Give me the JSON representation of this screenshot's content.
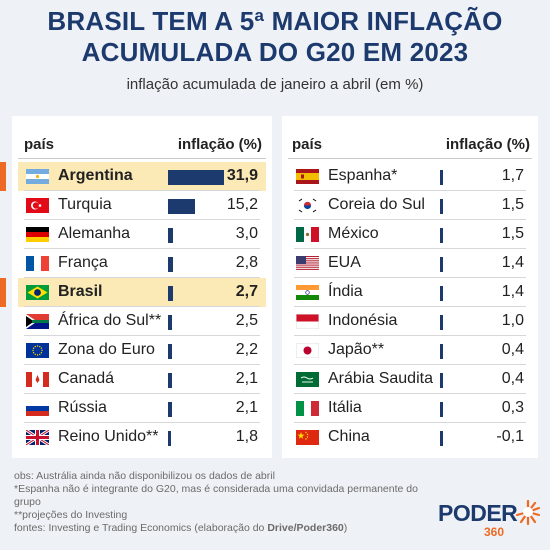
{
  "title_line1": "BRASIL TEM A 5ª MAIOR INFLAÇÃO",
  "title_line2": "ACUMULADA DO G20 EM 2023",
  "subtitle": "inflação acumulada de janeiro a abril (em %)",
  "table_left": {
    "col_country": "país",
    "col_value": "inflação (%)"
  },
  "table_right": {
    "col_country": "país",
    "col_value": "inflação (%)"
  },
  "colors": {
    "bar": "#1d3a6e",
    "highlight": "#fbe9b6",
    "accent": "#ee6a24"
  },
  "chart_data": {
    "type": "bar",
    "orientation": "horizontal",
    "title": "BRASIL TEM A 5ª MAIOR INFLAÇÃO ACUMULADA DO G20 EM 2023",
    "subtitle": "inflação acumulada de janeiro a abril (em %)",
    "rows": [
      {
        "country": "Argentina",
        "value": 31.9,
        "label": "31,9",
        "highlight": true,
        "flag": "argentina-flag-icon"
      },
      {
        "country": "Turquia",
        "value": 15.2,
        "label": "15,2",
        "highlight": false,
        "flag": "turkey-flag-icon"
      },
      {
        "country": "Alemanha",
        "value": 3.0,
        "label": "3,0",
        "highlight": false,
        "flag": "germany-flag-icon"
      },
      {
        "country": "França",
        "value": 2.8,
        "label": "2,8",
        "highlight": false,
        "flag": "france-flag-icon"
      },
      {
        "country": "Brasil",
        "value": 2.7,
        "label": "2,7",
        "highlight": true,
        "flag": "brazil-flag-icon"
      },
      {
        "country": "África do Sul**",
        "value": 2.5,
        "label": "2,5",
        "highlight": false,
        "flag": "south-africa-flag-icon"
      },
      {
        "country": "Zona do Euro",
        "value": 2.2,
        "label": "2,2",
        "highlight": false,
        "flag": "eu-flag-icon"
      },
      {
        "country": "Canadá",
        "value": 2.1,
        "label": "2,1",
        "highlight": false,
        "flag": "canada-flag-icon"
      },
      {
        "country": "Rússia",
        "value": 2.1,
        "label": "2,1",
        "highlight": false,
        "flag": "russia-flag-icon"
      },
      {
        "country": "Reino Unido**",
        "value": 1.8,
        "label": "1,8",
        "highlight": false,
        "flag": "uk-flag-icon"
      },
      {
        "country": "Espanha*",
        "value": 1.7,
        "label": "1,7",
        "highlight": false,
        "flag": "spain-flag-icon"
      },
      {
        "country": "Coreia do Sul",
        "value": 1.5,
        "label": "1,5",
        "highlight": false,
        "flag": "south-korea-flag-icon"
      },
      {
        "country": "México",
        "value": 1.5,
        "label": "1,5",
        "highlight": false,
        "flag": "mexico-flag-icon"
      },
      {
        "country": "EUA",
        "value": 1.4,
        "label": "1,4",
        "highlight": false,
        "flag": "usa-flag-icon"
      },
      {
        "country": "Índia",
        "value": 1.4,
        "label": "1,4",
        "highlight": false,
        "flag": "india-flag-icon"
      },
      {
        "country": "Indonésia",
        "value": 1.0,
        "label": "1,0",
        "highlight": false,
        "flag": "indonesia-flag-icon"
      },
      {
        "country": "Japão**",
        "value": 0.4,
        "label": "0,4",
        "highlight": false,
        "flag": "japan-flag-icon"
      },
      {
        "country": "Arábia Saudita",
        "value": 0.4,
        "label": "0,4",
        "highlight": false,
        "flag": "saudi-arabia-flag-icon"
      },
      {
        "country": "Itália",
        "value": 0.3,
        "label": "0,3",
        "highlight": false,
        "flag": "italy-flag-icon"
      },
      {
        "country": "China",
        "value": -0.1,
        "label": "-0,1",
        "highlight": false,
        "flag": "china-flag-icon"
      }
    ],
    "value_max": 31.9
  },
  "notes": {
    "line1": "obs: Austrália ainda não disponibilizou os dados de abril",
    "line2": "*Espanha não é integrante do G20, mas é considerada uma convidada permanente do grupo",
    "line3": " **projeções do Investing",
    "line4_prefix": "fontes: Investing e Trading Economics (elaboração do ",
    "line4_bold": "Drive/Poder360",
    "line4_suffix": ")"
  },
  "logo": {
    "word": "PODER",
    "number": "360"
  }
}
